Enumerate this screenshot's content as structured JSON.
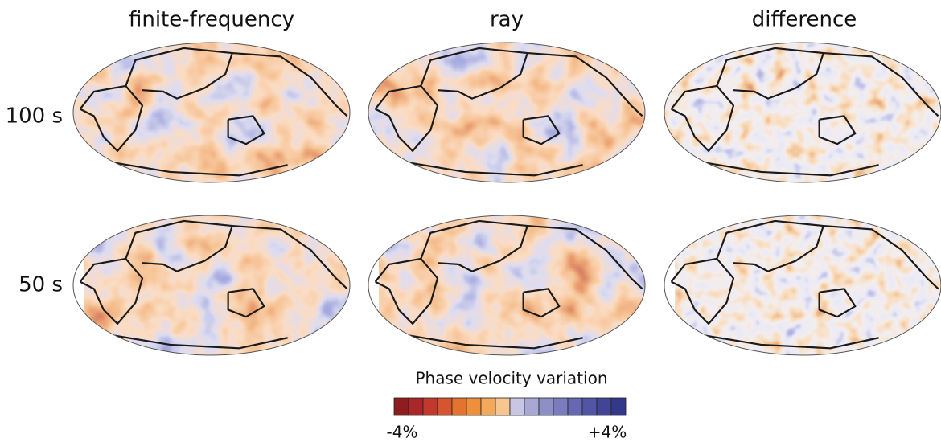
{
  "columns": [
    "finite-frequency",
    "ray",
    "difference"
  ],
  "rows": [
    "100 s",
    "50 s"
  ],
  "colorbar": {
    "title": "Phase velocity variation",
    "labels": [
      "-4%",
      "+4%"
    ],
    "colors": [
      "#8e1d1f",
      "#a8272a",
      "#c2392c",
      "#d7552e",
      "#e4732f",
      "#ee8f3b",
      "#f4a95a",
      "#f7c590",
      "#c8c6e2",
      "#a9a8d4",
      "#8f8fc7",
      "#7b7cbd",
      "#6668b3",
      "#5254a6",
      "#424596",
      "#33388a"
    ]
  }
}
